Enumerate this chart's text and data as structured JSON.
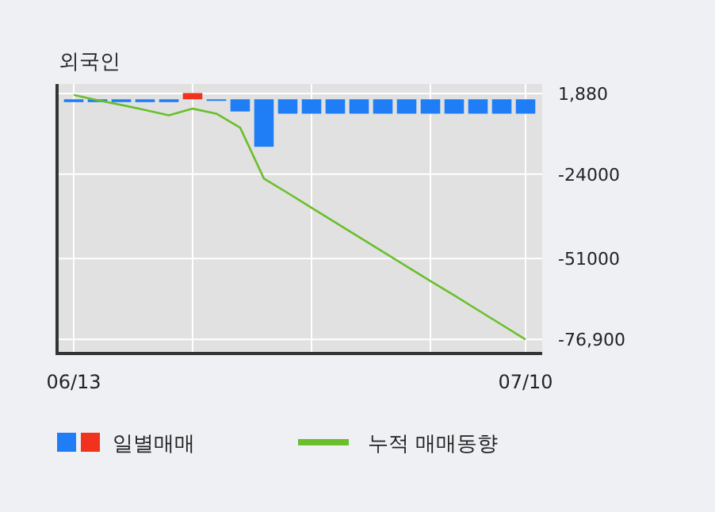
{
  "chart_data": {
    "type": "bar",
    "title": "외국인",
    "categories": [
      "06/13",
      null,
      null,
      null,
      null,
      null,
      null,
      null,
      null,
      null,
      null,
      null,
      null,
      null,
      null,
      null,
      null,
      null,
      null,
      "07/10"
    ],
    "series": [
      {
        "name": "일별매매",
        "colors": [
          "#1f7ef5",
          "#1f7ef5",
          "#1f7ef5",
          "#1f7ef5",
          "#1f7ef5",
          "#f0321e",
          "#1f7ef5",
          "#1f7ef5",
          "#1f7ef5",
          "#1f7ef5",
          "#1f7ef5",
          "#1f7ef5",
          "#1f7ef5",
          "#1f7ef5",
          "#1f7ef5",
          "#1f7ef5",
          "#1f7ef5",
          "#1f7ef5",
          "#1f7ef5",
          "#1f7ef5"
        ],
        "values": [
          -900,
          -900,
          -900,
          -900,
          -900,
          2000,
          -500,
          -3900,
          -15200,
          -4600,
          -4600,
          -4600,
          -4600,
          -4600,
          -4600,
          -4600,
          -4600,
          -4600,
          -4600,
          -4600
        ]
      },
      {
        "name": "누적 매매동향",
        "type": "line",
        "color": "#6abf2a",
        "values": [
          1400,
          -300,
          -1800,
          -3400,
          -5100,
          -3000,
          -4600,
          -9100,
          -25400,
          -30000,
          -34700,
          -39400,
          -44100,
          -48800,
          -53500,
          -58200,
          -62800,
          -67500,
          -72200,
          -76900
        ]
      }
    ],
    "ylim": [
      -81400,
      4900
    ],
    "yticks": [
      {
        "value": 1880,
        "label": "1,880"
      },
      -24000,
      -51000,
      {
        "value": -76900,
        "label": "-76,900"
      }
    ],
    "grid": true,
    "legend": "bottom"
  }
}
